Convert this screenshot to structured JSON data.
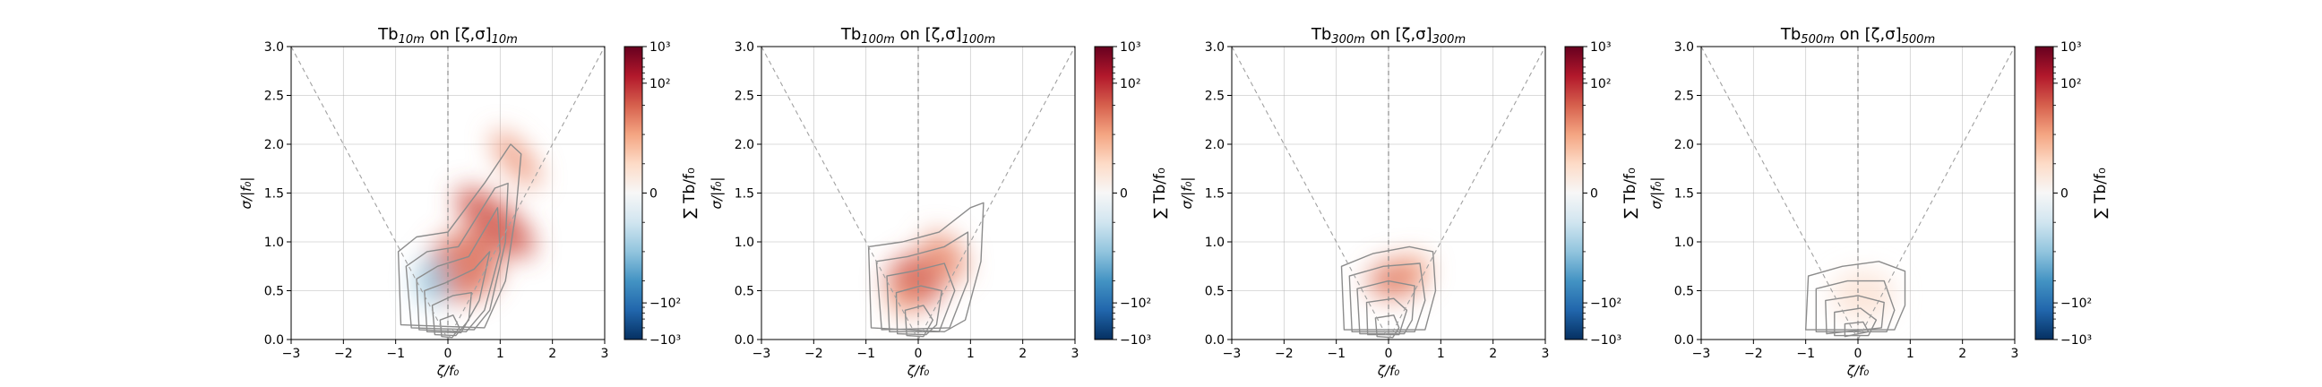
{
  "figure": {
    "background": "#ffffff"
  },
  "colorbar": {
    "ticks": [
      "10³",
      "10²",
      "0",
      "−10²",
      "−10³"
    ],
    "label": "∑ Tb/f₀",
    "colors": [
      "#67001f",
      "#b2182b",
      "#d6604d",
      "#f4a582",
      "#fddbc7",
      "#f7f7f7",
      "#d1e5f0",
      "#92c5de",
      "#4393c3",
      "#2166ac",
      "#053061"
    ]
  },
  "chart_data": [
    {
      "type": "heatmap",
      "title": {
        "base": "Tb",
        "sub1": "10m",
        "mid": " on [ζ,σ]",
        "sub2": "10m"
      },
      "xlabel": "ζ/f₀",
      "ylabel": "σ/|f₀|",
      "xlim": [
        -3,
        3
      ],
      "ylim": [
        0,
        3
      ],
      "xticks": [
        "−3",
        "−2",
        "−1",
        "0",
        "1",
        "2",
        "3"
      ],
      "yticks": [
        "0.0",
        "0.5",
        "1.0",
        "1.5",
        "2.0",
        "2.5",
        "3.0"
      ],
      "grid": true,
      "colorbar_range": [
        -1000,
        1000
      ],
      "blobs": [
        {
          "x": 0.9,
          "y": 1.2,
          "rx": 0.38,
          "ry": 0.5,
          "rot": -50,
          "value": 110
        },
        {
          "x": 0.3,
          "y": 0.75,
          "rx": 0.7,
          "ry": 0.35,
          "rot": -25,
          "value": 70
        },
        {
          "x": 1.3,
          "y": 1.85,
          "rx": 0.25,
          "ry": 0.35,
          "rot": -40,
          "value": 35
        },
        {
          "x": -0.3,
          "y": 0.6,
          "rx": 0.3,
          "ry": 0.25,
          "rot": 0,
          "value": -25
        }
      ],
      "contours": [
        [
          [
            -0.9,
            0.15
          ],
          [
            -0.95,
            0.9
          ],
          [
            -0.6,
            1.05
          ],
          [
            0,
            1.1
          ],
          [
            0.7,
            1.6
          ],
          [
            1.2,
            2.0
          ],
          [
            1.4,
            1.9
          ],
          [
            1.3,
            1.3
          ],
          [
            1.1,
            0.6
          ],
          [
            0.7,
            0.12
          ],
          [
            -0.9,
            0.15
          ]
        ],
        [
          [
            -0.7,
            0.12
          ],
          [
            -0.8,
            0.75
          ],
          [
            -0.4,
            0.9
          ],
          [
            0.2,
            0.95
          ],
          [
            0.9,
            1.55
          ],
          [
            1.15,
            1.6
          ],
          [
            1.1,
            1.0
          ],
          [
            0.8,
            0.3
          ],
          [
            0.5,
            0.1
          ],
          [
            -0.7,
            0.12
          ]
        ],
        [
          [
            -0.55,
            0.1
          ],
          [
            -0.6,
            0.62
          ],
          [
            -0.2,
            0.75
          ],
          [
            0.4,
            0.85
          ],
          [
            0.95,
            1.35
          ],
          [
            1.0,
            0.9
          ],
          [
            0.7,
            0.3
          ],
          [
            0.35,
            0.08
          ],
          [
            -0.55,
            0.1
          ]
        ],
        [
          [
            -0.4,
            0.08
          ],
          [
            -0.45,
            0.5
          ],
          [
            -0.05,
            0.58
          ],
          [
            0.5,
            0.72
          ],
          [
            0.8,
            0.9
          ],
          [
            0.6,
            0.4
          ],
          [
            0.25,
            0.07
          ],
          [
            -0.4,
            0.08
          ]
        ],
        [
          [
            -0.25,
            0.05
          ],
          [
            -0.3,
            0.35
          ],
          [
            0.1,
            0.45
          ],
          [
            0.45,
            0.48
          ],
          [
            0.4,
            0.2
          ],
          [
            0.15,
            0.04
          ],
          [
            -0.25,
            0.05
          ]
        ],
        [
          [
            -0.12,
            0.03
          ],
          [
            -0.15,
            0.2
          ],
          [
            0.1,
            0.25
          ],
          [
            0.22,
            0.12
          ],
          [
            0.08,
            0.02
          ],
          [
            -0.12,
            0.03
          ]
        ]
      ]
    },
    {
      "type": "heatmap",
      "title": {
        "base": "Tb",
        "sub1": "100m",
        "mid": " on [ζ,σ]",
        "sub2": "100m"
      },
      "xlabel": "ζ/f₀",
      "ylabel": "σ/|f₀|",
      "xlim": [
        -3,
        3
      ],
      "ylim": [
        0,
        3
      ],
      "xticks": [
        "−3",
        "−2",
        "−1",
        "0",
        "1",
        "2",
        "3"
      ],
      "yticks": [
        "0.0",
        "0.5",
        "1.0",
        "1.5",
        "2.0",
        "2.5",
        "3.0"
      ],
      "grid": true,
      "colorbar_range": [
        -1000,
        1000
      ],
      "blobs": [
        {
          "x": -0.05,
          "y": 0.6,
          "rx": 0.55,
          "ry": 0.28,
          "rot": -15,
          "value": 95
        },
        {
          "x": 0.5,
          "y": 0.85,
          "rx": 0.35,
          "ry": 0.28,
          "rot": -40,
          "value": 40
        },
        {
          "x": -0.3,
          "y": 0.4,
          "rx": 0.25,
          "ry": 0.15,
          "rot": 0,
          "value": 30
        }
      ],
      "contours": [
        [
          [
            -0.9,
            0.12
          ],
          [
            -0.95,
            0.95
          ],
          [
            -0.3,
            1.0
          ],
          [
            0.4,
            1.1
          ],
          [
            1.0,
            1.35
          ],
          [
            1.25,
            1.4
          ],
          [
            1.2,
            0.8
          ],
          [
            0.9,
            0.2
          ],
          [
            0.5,
            0.08
          ],
          [
            -0.9,
            0.12
          ]
        ],
        [
          [
            -0.7,
            0.1
          ],
          [
            -0.8,
            0.8
          ],
          [
            -0.2,
            0.85
          ],
          [
            0.5,
            0.95
          ],
          [
            0.95,
            1.1
          ],
          [
            0.95,
            0.6
          ],
          [
            0.6,
            0.12
          ],
          [
            -0.7,
            0.1
          ]
        ],
        [
          [
            -0.55,
            0.08
          ],
          [
            -0.6,
            0.65
          ],
          [
            -0.1,
            0.7
          ],
          [
            0.5,
            0.78
          ],
          [
            0.7,
            0.5
          ],
          [
            0.4,
            0.08
          ],
          [
            -0.55,
            0.08
          ]
        ],
        [
          [
            -0.4,
            0.06
          ],
          [
            -0.42,
            0.48
          ],
          [
            0.05,
            0.55
          ],
          [
            0.45,
            0.5
          ],
          [
            0.35,
            0.15
          ],
          [
            0.15,
            0.05
          ],
          [
            -0.4,
            0.06
          ]
        ],
        [
          [
            -0.22,
            0.04
          ],
          [
            -0.25,
            0.3
          ],
          [
            0.1,
            0.35
          ],
          [
            0.28,
            0.2
          ],
          [
            0.1,
            0.03
          ],
          [
            -0.22,
            0.04
          ]
        ]
      ]
    },
    {
      "type": "heatmap",
      "title": {
        "base": "Tb",
        "sub1": "300m",
        "mid": " on [ζ,σ]",
        "sub2": "300m"
      },
      "xlabel": "ζ/f₀",
      "ylabel": "σ/|f₀|",
      "xlim": [
        -3,
        3
      ],
      "ylim": [
        0,
        3
      ],
      "xticks": [
        "−3",
        "−2",
        "−1",
        "0",
        "1",
        "2",
        "3"
      ],
      "yticks": [
        "0.0",
        "0.5",
        "1.0",
        "1.5",
        "2.0",
        "2.5",
        "3.0"
      ],
      "grid": true,
      "colorbar_range": [
        -1000,
        1000
      ],
      "blobs": [
        {
          "x": 0.15,
          "y": 0.62,
          "rx": 0.55,
          "ry": 0.2,
          "rot": -10,
          "value": 55
        },
        {
          "x": 0.5,
          "y": 0.72,
          "rx": 0.25,
          "ry": 0.15,
          "rot": -20,
          "value": 30
        }
      ],
      "contours": [
        [
          [
            -0.85,
            0.1
          ],
          [
            -0.9,
            0.75
          ],
          [
            -0.3,
            0.88
          ],
          [
            0.4,
            0.95
          ],
          [
            0.85,
            0.9
          ],
          [
            0.9,
            0.5
          ],
          [
            0.7,
            0.1
          ],
          [
            -0.85,
            0.1
          ]
        ],
        [
          [
            -0.7,
            0.08
          ],
          [
            -0.75,
            0.65
          ],
          [
            -0.1,
            0.75
          ],
          [
            0.6,
            0.78
          ],
          [
            0.7,
            0.4
          ],
          [
            0.5,
            0.08
          ],
          [
            -0.7,
            0.08
          ]
        ],
        [
          [
            -0.55,
            0.06
          ],
          [
            -0.6,
            0.52
          ],
          [
            0.0,
            0.6
          ],
          [
            0.5,
            0.55
          ],
          [
            0.45,
            0.2
          ],
          [
            0.3,
            0.06
          ],
          [
            -0.55,
            0.06
          ]
        ],
        [
          [
            -0.4,
            0.05
          ],
          [
            -0.42,
            0.38
          ],
          [
            0.1,
            0.42
          ],
          [
            0.35,
            0.3
          ],
          [
            0.2,
            0.05
          ],
          [
            -0.4,
            0.05
          ]
        ],
        [
          [
            -0.22,
            0.03
          ],
          [
            -0.25,
            0.22
          ],
          [
            0.1,
            0.25
          ],
          [
            0.2,
            0.12
          ],
          [
            0.08,
            0.02
          ],
          [
            -0.22,
            0.03
          ]
        ]
      ]
    },
    {
      "type": "heatmap",
      "title": {
        "base": "Tb",
        "sub1": "500m",
        "mid": " on [ζ,σ]",
        "sub2": "500m"
      },
      "xlabel": "ζ/f₀",
      "ylabel": "σ/|f₀|",
      "xlim": [
        -3,
        3
      ],
      "ylim": [
        0,
        3
      ],
      "xticks": [
        "−3",
        "−2",
        "−1",
        "0",
        "1",
        "2",
        "3"
      ],
      "yticks": [
        "0.0",
        "0.5",
        "1.0",
        "1.5",
        "2.0",
        "2.5",
        "3.0"
      ],
      "grid": true,
      "colorbar_range": [
        -1000,
        1000
      ],
      "blobs": [
        {
          "x": 0.1,
          "y": 0.45,
          "rx": 0.6,
          "ry": 0.25,
          "rot": 0,
          "value": 6
        }
      ],
      "contours": [
        [
          [
            -1.0,
            0.1
          ],
          [
            -0.95,
            0.65
          ],
          [
            -0.3,
            0.75
          ],
          [
            0.4,
            0.8
          ],
          [
            0.9,
            0.7
          ],
          [
            0.9,
            0.35
          ],
          [
            0.7,
            0.1
          ],
          [
            -1.0,
            0.1
          ]
        ],
        [
          [
            -0.8,
            0.08
          ],
          [
            -0.8,
            0.52
          ],
          [
            -0.2,
            0.6
          ],
          [
            0.5,
            0.6
          ],
          [
            0.7,
            0.3
          ],
          [
            0.55,
            0.08
          ],
          [
            -0.8,
            0.08
          ]
        ],
        [
          [
            -0.6,
            0.06
          ],
          [
            -0.62,
            0.4
          ],
          [
            0.0,
            0.45
          ],
          [
            0.5,
            0.38
          ],
          [
            0.45,
            0.12
          ],
          [
            -0.6,
            0.06
          ]
        ],
        [
          [
            -0.45,
            0.04
          ],
          [
            -0.45,
            0.28
          ],
          [
            0.05,
            0.32
          ],
          [
            0.35,
            0.2
          ],
          [
            0.2,
            0.04
          ],
          [
            -0.45,
            0.04
          ]
        ],
        [
          [
            -0.25,
            0.03
          ],
          [
            -0.25,
            0.16
          ],
          [
            0.1,
            0.18
          ],
          [
            0.2,
            0.08
          ],
          [
            -0.25,
            0.03
          ]
        ]
      ]
    }
  ]
}
